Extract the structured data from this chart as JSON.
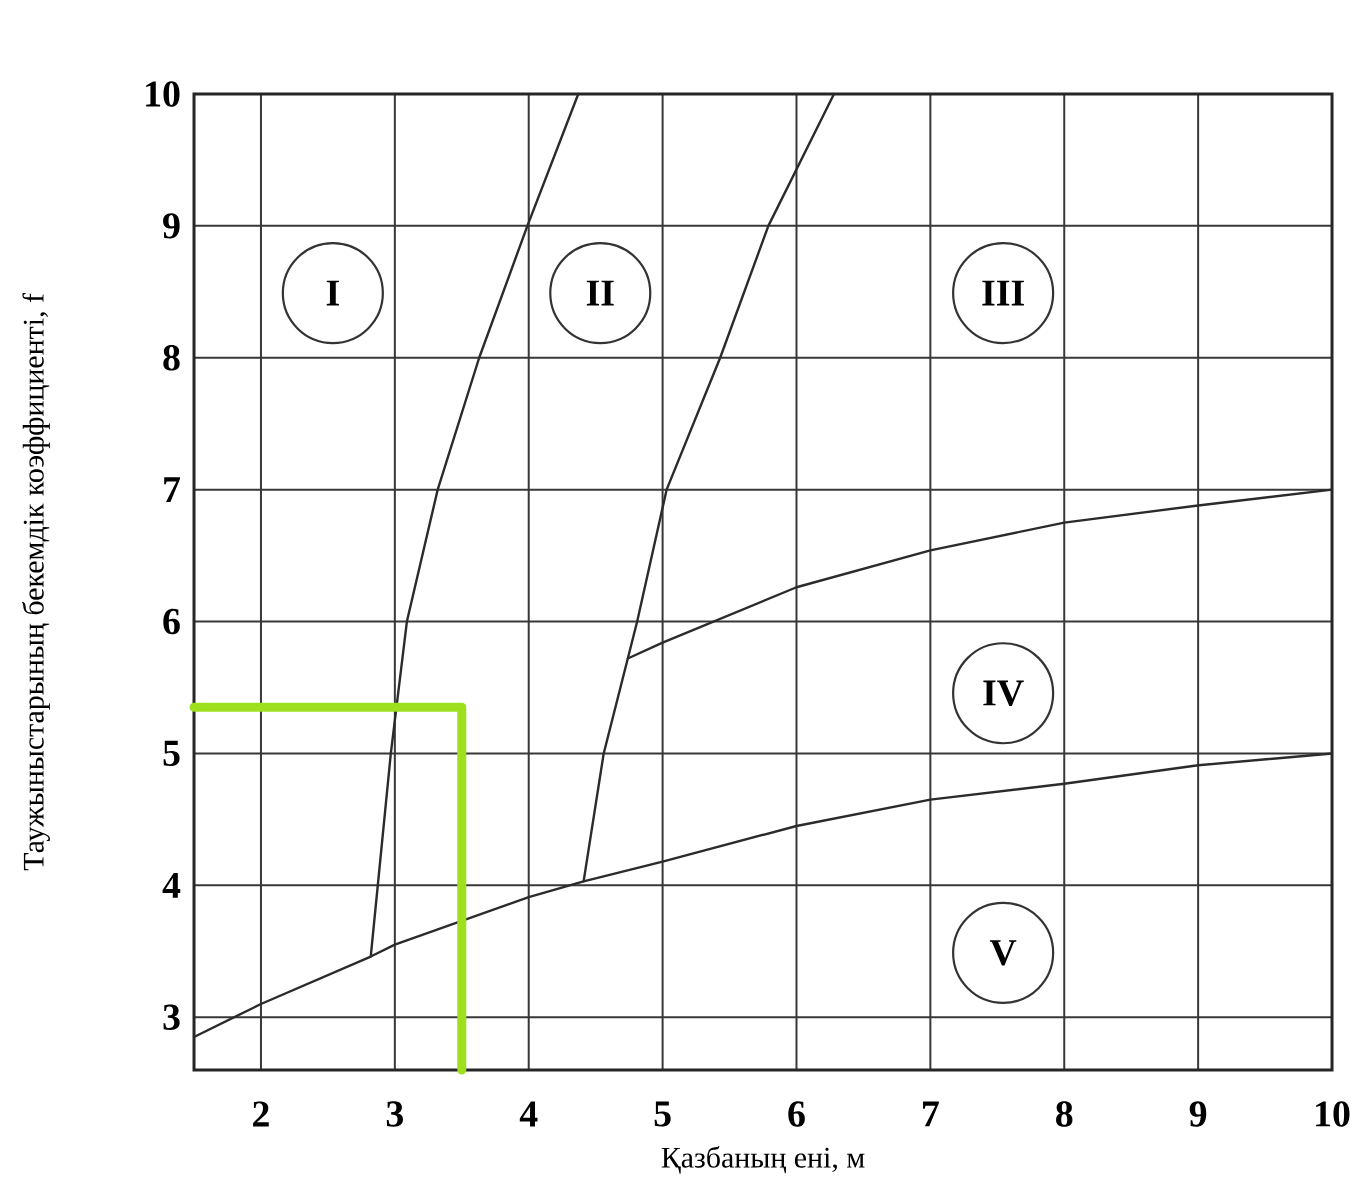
{
  "chart_data": {
    "type": "line",
    "xlabel": "Қазбаның ені, м",
    "ylabel": "Таужыныстарының бекемдік коэффициенті, f",
    "xlim": [
      1.5,
      10
    ],
    "ylim": [
      2.6,
      10
    ],
    "xticks": [
      2,
      3,
      4,
      5,
      6,
      7,
      8,
      9,
      10
    ],
    "yticks": [
      3,
      4,
      5,
      6,
      7,
      8,
      9,
      10
    ],
    "grid": true,
    "marker": "none",
    "line_style": "solid",
    "series": [
      {
        "color": "#2b2b2b",
        "x": [
          2.82,
          2.97,
          3.09,
          3.32,
          3.63,
          3.99,
          4.37
        ],
        "values": [
          3.46,
          5,
          6,
          7,
          8,
          9,
          10
        ]
      },
      {
        "color": "#2b2b2b",
        "x": [
          4.41,
          4.56,
          4.74,
          4.81,
          5.03,
          5.43,
          5.79,
          6.28
        ],
        "values": [
          4.03,
          5,
          5.72,
          6,
          7,
          8,
          9,
          10
        ]
      },
      {
        "color": "#2b2b2b",
        "x": [
          4.74,
          5,
          6,
          7,
          8,
          9,
          10
        ],
        "values": [
          5.72,
          5.84,
          6.26,
          6.54,
          6.75,
          6.88,
          7.0
        ]
      },
      {
        "color": "#2b2b2b",
        "x": [
          1.5,
          2,
          2.82,
          3,
          4,
          4.41,
          5,
          6,
          7,
          8,
          9,
          10
        ],
        "values": [
          2.85,
          3.1,
          3.46,
          3.55,
          3.91,
          4.03,
          4.18,
          4.45,
          4.65,
          4.77,
          4.91,
          5.0
        ]
      },
      {
        "color": "#9ee01e",
        "x": [
          1.5,
          3.5,
          3.5
        ],
        "values": [
          5.35,
          5.35,
          2.6
        ]
      }
    ],
    "annotations": [
      "I",
      "II",
      "III",
      "IV",
      "V"
    ]
  }
}
